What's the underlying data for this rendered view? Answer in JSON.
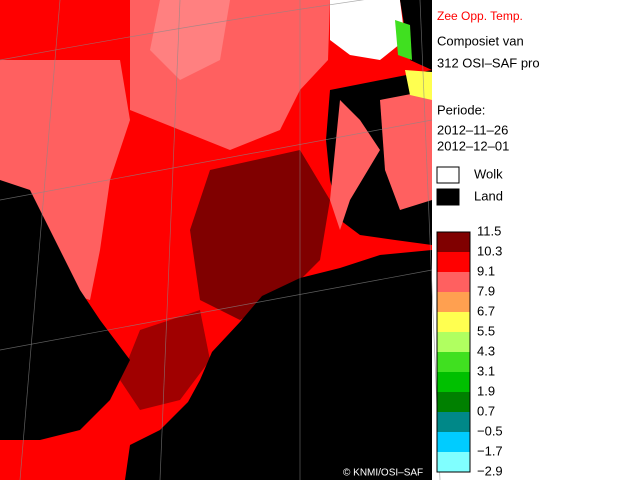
{
  "title": "Zee Opp. Temp.",
  "subtitle_lines": [
    "Composiet van",
    "312 OSI–SAF pro"
  ],
  "period": {
    "label": "Periode:",
    "start": "2012–11–26",
    "end": "2012–12–01"
  },
  "legend": [
    {
      "label": "Wolk",
      "color": "#ffffff"
    },
    {
      "label": "Land",
      "color": "#000000"
    }
  ],
  "scale": {
    "labels": [
      "11.5",
      "10.3",
      "9.1",
      "7.9",
      "6.7",
      "5.5",
      "4.3",
      "3.1",
      "1.9",
      "0.7",
      "−0.5",
      "−1.7",
      "−2.9"
    ],
    "colors": [
      "#800000",
      "#ff0000",
      "#ff6060",
      "#ffa050",
      "#ffff50",
      "#b0ff60",
      "#40e020",
      "#00c000",
      "#008000",
      "#008888",
      "#00ccff",
      "#80ffff"
    ]
  },
  "copyright": "© KNMI/OSI–SAF"
}
